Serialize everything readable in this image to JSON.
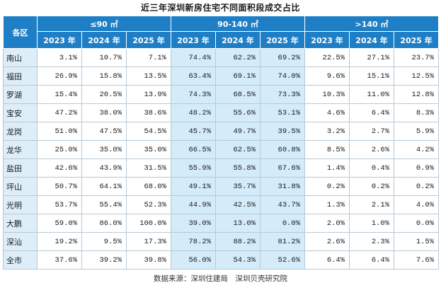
{
  "title": "近三年深圳新房住宅不同面积段成交占比",
  "header": {
    "region_label": "各区",
    "groups": [
      "≤90 ㎡",
      "90-140 ㎡",
      ">140 ㎡"
    ],
    "years": [
      "2023 年",
      "2024 年",
      "2025 年"
    ]
  },
  "rows": [
    {
      "region": "南山",
      "values": [
        "3.1%",
        "10.7%",
        "7.1%",
        "74.4%",
        "62.2%",
        "69.2%",
        "22.5%",
        "27.1%",
        "23.7%"
      ]
    },
    {
      "region": "福田",
      "values": [
        "26.9%",
        "15.8%",
        "13.5%",
        "63.4%",
        "69.1%",
        "74.0%",
        "9.6%",
        "15.1%",
        "12.5%"
      ]
    },
    {
      "region": "罗湖",
      "values": [
        "15.4%",
        "20.5%",
        "13.9%",
        "74.3%",
        "68.5%",
        "73.3%",
        "10.3%",
        "11.0%",
        "12.8%"
      ]
    },
    {
      "region": "宝安",
      "values": [
        "47.2%",
        "38.0%",
        "38.6%",
        "48.2%",
        "55.6%",
        "53.1%",
        "4.6%",
        "6.4%",
        "8.3%"
      ]
    },
    {
      "region": "龙岗",
      "values": [
        "51.0%",
        "47.5%",
        "54.5%",
        "45.7%",
        "49.7%",
        "39.5%",
        "3.2%",
        "2.7%",
        "5.9%"
      ]
    },
    {
      "region": "龙华",
      "values": [
        "25.0%",
        "35.0%",
        "35.0%",
        "66.5%",
        "62.5%",
        "60.8%",
        "8.5%",
        "2.6%",
        "4.2%"
      ]
    },
    {
      "region": "盐田",
      "values": [
        "42.6%",
        "43.9%",
        "31.5%",
        "55.9%",
        "55.8%",
        "67.6%",
        "1.4%",
        "0.4%",
        "0.9%"
      ]
    },
    {
      "region": "坪山",
      "values": [
        "50.7%",
        "64.1%",
        "68.0%",
        "49.1%",
        "35.7%",
        "31.8%",
        "0.2%",
        "0.2%",
        "0.2%"
      ]
    },
    {
      "region": "光明",
      "values": [
        "53.7%",
        "55.4%",
        "52.3%",
        "44.9%",
        "42.5%",
        "43.7%",
        "1.3%",
        "2.1%",
        "4.0%"
      ]
    },
    {
      "region": "大鹏",
      "values": [
        "59.0%",
        "86.0%",
        "100.0%",
        "39.0%",
        "13.0%",
        "0.0%",
        "2.0%",
        "1.0%",
        "0.0%"
      ]
    },
    {
      "region": "深汕",
      "values": [
        "19.2%",
        "9.5%",
        "17.3%",
        "78.2%",
        "88.2%",
        "81.2%",
        "2.6%",
        "2.3%",
        "1.5%"
      ]
    },
    {
      "region": "全市",
      "values": [
        "37.6%",
        "39.2%",
        "39.8%",
        "56.0%",
        "54.3%",
        "52.6%",
        "6.4%",
        "6.4%",
        "7.6%"
      ]
    }
  ],
  "source": "数据来源：深圳住建局　深圳贝壳研究院",
  "colors": {
    "header_bg": "#1f7fc6",
    "region_bg": "#ddeef9",
    "mid_group_bg": "#d4ebfa",
    "border": "#b7c9d6"
  }
}
